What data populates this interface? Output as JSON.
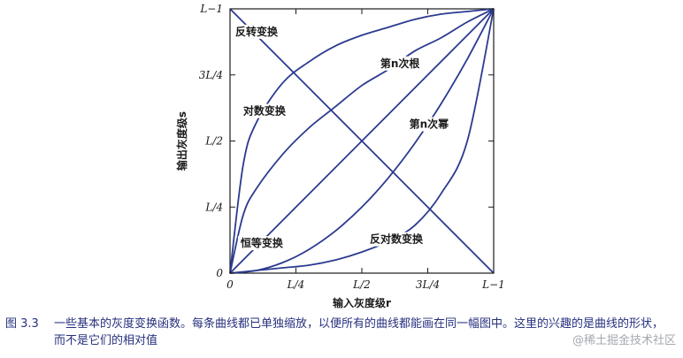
{
  "chart_data": {
    "type": "line",
    "title": "",
    "xlabel": "输入灰度级r",
    "ylabel": "输出灰度级s",
    "xlim": [
      0,
      1
    ],
    "ylim": [
      0,
      1
    ],
    "x_ticks": [
      0,
      0.25,
      0.5,
      0.75,
      1
    ],
    "x_tick_labels": [
      "0",
      "L/4",
      "L/2",
      "3L/4",
      "L−1"
    ],
    "y_ticks": [
      0,
      0.25,
      0.5,
      0.75,
      1
    ],
    "y_tick_labels": [
      "0",
      "L/4",
      "L/2",
      "3L/4",
      "L−1"
    ],
    "grid": false,
    "series": [
      {
        "name": "反转变换",
        "x": [
          0,
          0.25,
          0.5,
          0.75,
          1
        ],
        "y": [
          1,
          0.75,
          0.5,
          0.25,
          0
        ]
      },
      {
        "name": "对数变换",
        "x": [
          0,
          0.05,
          0.1,
          0.2,
          0.3,
          0.4,
          0.5,
          0.6,
          0.7,
          0.8,
          0.9,
          1
        ],
        "y": [
          0,
          0.41,
          0.57,
          0.72,
          0.8,
          0.86,
          0.9,
          0.93,
          0.96,
          0.98,
          0.99,
          1
        ]
      },
      {
        "name": "第n次根",
        "x": [
          0,
          0.05,
          0.1,
          0.2,
          0.3,
          0.4,
          0.5,
          0.6,
          0.7,
          0.8,
          0.9,
          1
        ],
        "y": [
          0,
          0.22,
          0.32,
          0.45,
          0.55,
          0.63,
          0.71,
          0.77,
          0.84,
          0.89,
          0.95,
          1
        ]
      },
      {
        "name": "恒等变换",
        "x": [
          0,
          0.25,
          0.5,
          0.75,
          1
        ],
        "y": [
          0,
          0.25,
          0.5,
          0.75,
          1
        ]
      },
      {
        "name": "第n次幂",
        "x": [
          0,
          0.1,
          0.2,
          0.3,
          0.4,
          0.5,
          0.6,
          0.7,
          0.8,
          0.9,
          1
        ],
        "y": [
          0,
          0.01,
          0.04,
          0.09,
          0.16,
          0.25,
          0.36,
          0.49,
          0.64,
          0.81,
          1
        ]
      },
      {
        "name": "反对数变换",
        "x": [
          0,
          0.1,
          0.2,
          0.3,
          0.4,
          0.5,
          0.6,
          0.7,
          0.8,
          0.9,
          1
        ],
        "y": [
          0,
          0.01,
          0.02,
          0.03,
          0.05,
          0.08,
          0.12,
          0.18,
          0.3,
          0.5,
          1
        ]
      }
    ],
    "colors": {
      "curve": "#2b3a8f",
      "axis": "#1a1a1a"
    }
  },
  "caption": {
    "label": "图 3.3",
    "text": "一些基本的灰度变换函数。每条曲线都已单独缩放，以便所有的曲线都能画在同一幅图中。这里的兴趣的是曲线的形状，而不是它们的相对值"
  },
  "watermark": "@稀土掘金技术社区"
}
